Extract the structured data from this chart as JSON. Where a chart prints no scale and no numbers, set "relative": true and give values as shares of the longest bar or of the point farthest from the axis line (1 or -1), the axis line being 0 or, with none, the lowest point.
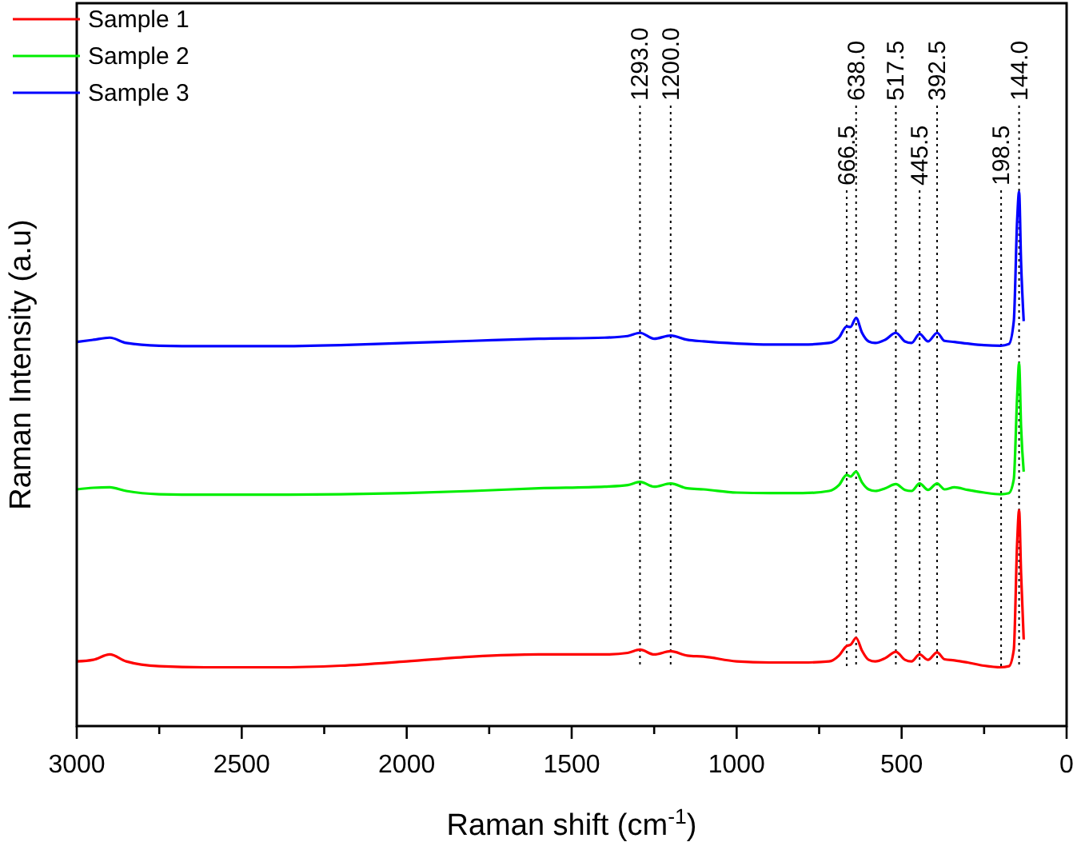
{
  "chart_data": {
    "type": "line",
    "relative": true,
    "xlabel": "Raman shift (cm$^{-1}$)",
    "ylabel": "Raman Intensity (a.u)",
    "x": [
      3000,
      2950,
      2900,
      2850,
      2750,
      2600,
      2400,
      2200,
      2000,
      1800,
      1600,
      1400,
      1330,
      1293,
      1250,
      1200,
      1150,
      1100,
      1000,
      900,
      800,
      720,
      690,
      666.5,
      655,
      638,
      620,
      600,
      580,
      550,
      517.5,
      490,
      470,
      445.5,
      420,
      392.5,
      370,
      340,
      300,
      250,
      200,
      175,
      160,
      150,
      144,
      138,
      130
    ],
    "xlim": [
      3000,
      0
    ],
    "xticks": [
      3000,
      {
        "value": 2750,
        "label": null
      },
      2500,
      {
        "value": 2250,
        "label": null
      },
      2000,
      {
        "value": 1750,
        "label": null
      },
      1500,
      {
        "value": 1250,
        "label": null
      },
      1000,
      {
        "value": 750,
        "label": null
      },
      500,
      {
        "value": 250,
        "label": null
      },
      0
    ],
    "series": [
      {
        "name": "Sample 1",
        "color": "#ff0000",
        "values": [
          0.121,
          0.124,
          0.134,
          0.121,
          0.112,
          0.11,
          0.11,
          0.113,
          0.121,
          0.13,
          0.134,
          0.134,
          0.137,
          0.143,
          0.134,
          0.14,
          0.132,
          0.13,
          0.121,
          0.119,
          0.119,
          0.121,
          0.132,
          0.15,
          0.152,
          0.165,
          0.141,
          0.124,
          0.121,
          0.127,
          0.139,
          0.124,
          0.121,
          0.134,
          0.124,
          0.138,
          0.125,
          0.123,
          0.119,
          0.113,
          0.11,
          0.112,
          0.143,
          0.341,
          0.404,
          0.286,
          0.162
        ]
      },
      {
        "name": "Sample 2",
        "color": "#00ee00",
        "values": [
          0.443,
          0.446,
          0.447,
          0.44,
          0.434,
          0.433,
          0.433,
          0.434,
          0.436,
          0.44,
          0.445,
          0.448,
          0.451,
          0.457,
          0.448,
          0.454,
          0.445,
          0.443,
          0.437,
          0.436,
          0.436,
          0.44,
          0.451,
          0.47,
          0.467,
          0.476,
          0.456,
          0.443,
          0.44,
          0.445,
          0.453,
          0.442,
          0.44,
          0.454,
          0.442,
          0.454,
          0.443,
          0.447,
          0.442,
          0.437,
          0.434,
          0.436,
          0.462,
          0.615,
          0.679,
          0.56,
          0.476
        ]
      },
      {
        "name": "Sample 3",
        "color": "#0000ff",
        "values": [
          0.719,
          0.723,
          0.727,
          0.717,
          0.712,
          0.711,
          0.711,
          0.713,
          0.717,
          0.721,
          0.725,
          0.727,
          0.73,
          0.736,
          0.725,
          0.731,
          0.723,
          0.72,
          0.716,
          0.714,
          0.714,
          0.717,
          0.727,
          0.748,
          0.747,
          0.764,
          0.736,
          0.72,
          0.717,
          0.723,
          0.736,
          0.72,
          0.717,
          0.734,
          0.72,
          0.736,
          0.721,
          0.719,
          0.716,
          0.713,
          0.712,
          0.715,
          0.758,
          0.945,
          1.0,
          0.868,
          0.758
        ]
      }
    ],
    "ref_lines": [
      {
        "axis": "x",
        "value": 1293,
        "label": "1293.0",
        "line_style": "dotted"
      },
      {
        "axis": "x",
        "value": 1200,
        "label": "1200.0",
        "line_style": "dotted"
      },
      {
        "axis": "x",
        "value": 666.5,
        "label": "666.5",
        "line_style": "dotted"
      },
      {
        "axis": "x",
        "value": 638,
        "label": "638.0",
        "line_style": "dotted"
      },
      {
        "axis": "x",
        "value": 517.5,
        "label": "517.5",
        "line_style": "dotted"
      },
      {
        "axis": "x",
        "value": 445.5,
        "label": "445.5",
        "line_style": "dotted"
      },
      {
        "axis": "x",
        "value": 392.5,
        "label": "392.5",
        "line_style": "dotted"
      },
      {
        "axis": "x",
        "value": 198.5,
        "label": "198.5",
        "line_style": "dotted"
      },
      {
        "axis": "x",
        "value": 144,
        "label": "144.0",
        "line_style": "dotted"
      }
    ],
    "legend": "top left",
    "grid": false,
    "marker": "none",
    "line_style": "solid"
  }
}
